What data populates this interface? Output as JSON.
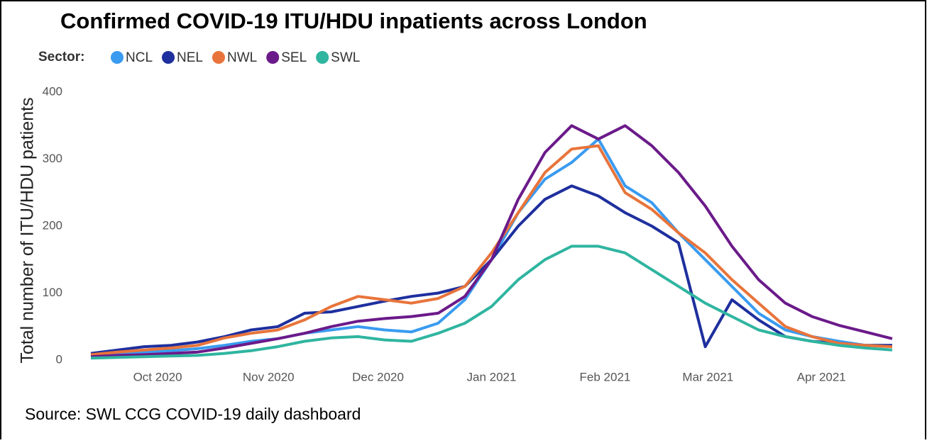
{
  "chart_data": {
    "type": "line",
    "title": "Confirmed COVID-19 ITU/HDU inpatients across London",
    "legend_title": "Sector:",
    "y_label": "Total number of ITU/HDU patients",
    "source": "Source: SWL CCG COVID-19 daily dashboard",
    "x": [
      2020.7,
      2020.72,
      2020.74,
      2020.76,
      2020.78,
      2020.8,
      2020.82,
      2020.84,
      2020.86,
      2020.88,
      2020.9,
      2020.92,
      2020.94,
      2020.96,
      2020.98,
      2021.0,
      2021.02,
      2021.04,
      2021.06,
      2021.08,
      2021.1,
      2021.12,
      2021.14,
      2021.16,
      2021.18,
      2021.2,
      2021.22,
      2021.24,
      2021.26,
      2021.28,
      2021.3
    ],
    "xlim": [
      2020.7,
      2021.3
    ],
    "xticks": [
      {
        "value": 2020.75,
        "label": "Oct 2020"
      },
      {
        "value": 2020.833,
        "label": "Nov 2020"
      },
      {
        "value": 2020.915,
        "label": "Dec 2020"
      },
      {
        "value": 2021.0,
        "label": "Jan 2021"
      },
      {
        "value": 2021.085,
        "label": "Feb 2021"
      },
      {
        "value": 2021.162,
        "label": "Mar 2021"
      },
      {
        "value": 2021.247,
        "label": "Apr 2021"
      }
    ],
    "ylim": [
      0,
      400
    ],
    "yticks": [
      0,
      100,
      200,
      300,
      400
    ],
    "grid": false,
    "series": [
      {
        "name": "NCL",
        "color": "#3a9bf0",
        "values": [
          8,
          10,
          12,
          14,
          17,
          22,
          28,
          32,
          40,
          45,
          50,
          45,
          42,
          55,
          90,
          150,
          220,
          270,
          295,
          330,
          260,
          235,
          190,
          150,
          110,
          70,
          45,
          35,
          28,
          22,
          22
        ]
      },
      {
        "name": "NEL",
        "color": "#1e2f9e",
        "values": [
          10,
          15,
          20,
          22,
          27,
          35,
          45,
          50,
          70,
          72,
          80,
          88,
          95,
          100,
          110,
          150,
          200,
          240,
          260,
          245,
          220,
          200,
          175,
          20,
          90,
          60,
          35,
          28,
          25,
          22,
          22
        ]
      },
      {
        "name": "NWL",
        "color": "#e8743b",
        "values": [
          8,
          12,
          15,
          18,
          22,
          33,
          40,
          45,
          60,
          80,
          95,
          90,
          85,
          92,
          110,
          160,
          220,
          280,
          315,
          320,
          250,
          225,
          190,
          160,
          120,
          85,
          50,
          35,
          25,
          22,
          20
        ]
      },
      {
        "name": "SEL",
        "color": "#6b1a8a",
        "values": [
          5,
          7,
          8,
          10,
          12,
          18,
          25,
          32,
          40,
          50,
          58,
          62,
          65,
          70,
          95,
          150,
          240,
          310,
          350,
          330,
          350,
          320,
          280,
          230,
          170,
          120,
          85,
          65,
          52,
          42,
          32
        ]
      },
      {
        "name": "SWL",
        "color": "#2fb5a0",
        "values": [
          3,
          4,
          5,
          6,
          7,
          10,
          14,
          20,
          28,
          33,
          35,
          30,
          28,
          40,
          55,
          80,
          120,
          150,
          170,
          170,
          160,
          135,
          110,
          85,
          65,
          45,
          35,
          28,
          22,
          18,
          15
        ]
      }
    ]
  }
}
